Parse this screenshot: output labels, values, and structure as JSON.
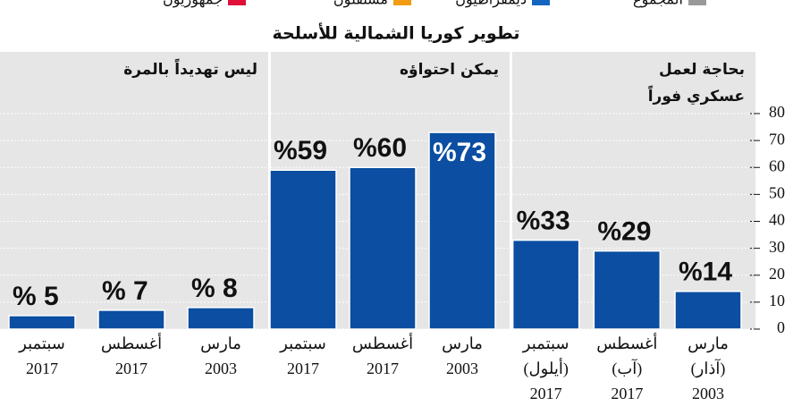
{
  "chart_data": {
    "type": "bar",
    "title": "تطوير كوريا الشمالية للأسلحة",
    "legend": [
      {
        "name": "المجموع",
        "color": "#999999"
      },
      {
        "name": "ديمقراطيون",
        "color": "#1565c0"
      },
      {
        "name": "مستقلون",
        "color": "#f39c12"
      },
      {
        "name": "جمهوريون",
        "color": "#e0103a"
      }
    ],
    "color": "#0b4ea2",
    "ylim": [
      0,
      80
    ],
    "yticks": [
      0,
      10,
      20,
      30,
      40,
      50,
      60,
      70,
      80
    ],
    "grid": true,
    "panels": [
      {
        "title": [
          "بحاجة لعمل",
          "عسكري فوراً"
        ],
        "categories": [
          [
            "مارس",
            "(آذار)",
            "2003"
          ],
          [
            "أغسطس",
            "(آب)",
            "2017"
          ],
          [
            "سبتمبر",
            "(أيلول)",
            "2017"
          ]
        ],
        "values": [
          14,
          29,
          33
        ],
        "value_labels": [
          "%14",
          "%29",
          "%33"
        ]
      },
      {
        "title": [
          "يمكن احتواؤه"
        ],
        "categories": [
          [
            "مارس",
            "2003"
          ],
          [
            "أغسطس",
            "2017"
          ],
          [
            "سبتمبر",
            "2017"
          ]
        ],
        "values": [
          73,
          60,
          59
        ],
        "value_labels": [
          "%73",
          "%60",
          "%59"
        ]
      },
      {
        "title": [
          "ليس تهديداً بالمرة"
        ],
        "categories": [
          [
            "مارس",
            "2003"
          ],
          [
            "أغسطس",
            "2017"
          ],
          [
            "سبتمبر",
            "2017"
          ]
        ],
        "values": [
          8,
          7,
          5
        ],
        "value_labels": [
          "% 8",
          "% 7",
          "% 5"
        ]
      }
    ]
  }
}
